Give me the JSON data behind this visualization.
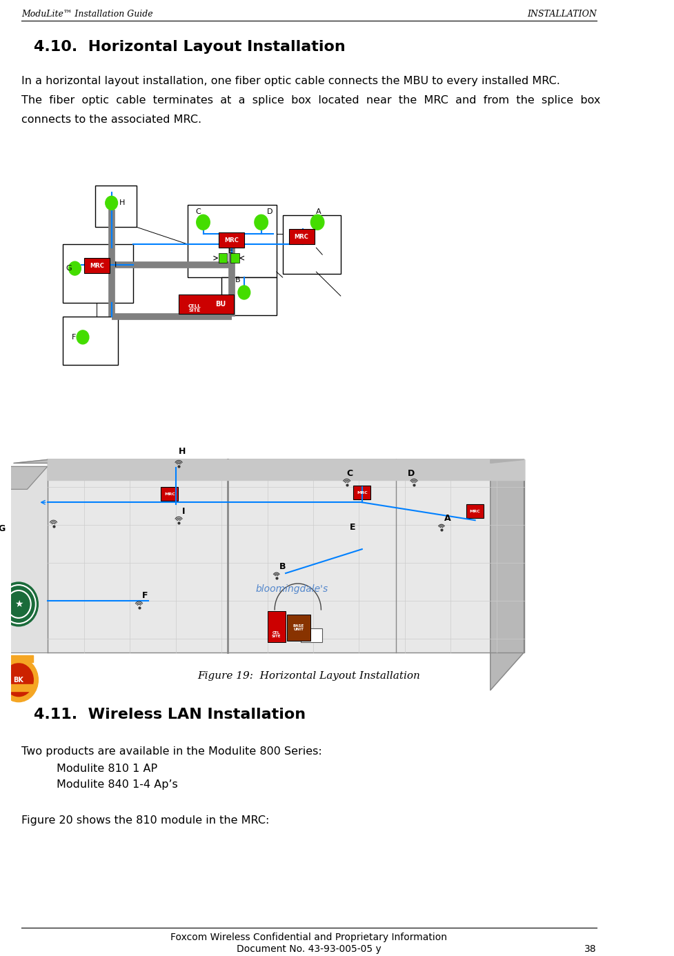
{
  "header_left": "ModuLite™ Installation Guide",
  "header_right": "INSTALLATION",
  "section_title": "4.10.  Horizontal Layout Installation",
  "body_text_line1": "In a horizontal layout installation, one fiber optic cable connects the MBU to every installed MRC.",
  "body_text_line2": "The  fiber  optic  cable  terminates  at  a  splice  box  located  near  the  MRC  and  from  the  splice  box",
  "body_text_line3": "connects to the associated MRC.",
  "figure_caption": "Figure 19:  Horizontal Layout Installation",
  "section2_title": "4.11.  Wireless LAN Installation",
  "body2_line1": "Two products are available in the Modulite 800 Series:",
  "body2_line2": "Modulite 810 1 AP",
  "body2_line3": "Modulite 840 1-4 Ap’s",
  "body2_line4": "Figure 20 shows the 810 module in the MRC:",
  "footer_line1": "Foxcom Wireless Confidential and Proprietary Information",
  "footer_line2": "Document No. 43-93-005-05 y",
  "footer_page": "38",
  "bg_color": "#ffffff",
  "header_font_color": "#000000",
  "text_color": "#000000",
  "header_line_color": "#000000",
  "footer_line_color": "#000000",
  "schematic_box_color": "#ffffff",
  "schematic_line_color": "#808080",
  "fiber_color": "#0080ff",
  "mrc_color": "#cc0000",
  "cell_site_color": "#cc0000",
  "green_node_color": "#44dd00",
  "building_face_color": "#d8d8d8",
  "building_top_color": "#c0c0c0",
  "building_left_color": "#b8b8b8",
  "building_wall_color": "#e0e0e0",
  "grid_color": "#cccccc",
  "floor_color": "#e8e8e8",
  "blue_text_color": "#5588cc"
}
